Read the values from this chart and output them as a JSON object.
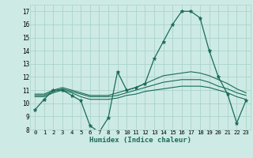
{
  "xlabel": "Humidex (Indice chaleur)",
  "xlim": [
    -0.5,
    23.5
  ],
  "ylim": [
    8,
    17.5
  ],
  "yticks": [
    8,
    9,
    10,
    11,
    12,
    13,
    14,
    15,
    16,
    17
  ],
  "xticks": [
    0,
    1,
    2,
    3,
    4,
    5,
    6,
    7,
    8,
    9,
    10,
    11,
    12,
    13,
    14,
    15,
    16,
    17,
    18,
    19,
    20,
    21,
    22,
    23
  ],
  "bg_color": "#ceeae4",
  "grid_color": "#a8d4cc",
  "line_color": "#1a6b5a",
  "lines": [
    {
      "x": [
        0,
        1,
        2,
        3,
        4,
        5,
        6,
        7,
        8,
        9,
        10,
        11,
        12,
        13,
        14,
        15,
        16,
        17,
        18,
        19,
        20,
        21,
        22,
        23
      ],
      "y": [
        9.5,
        10.3,
        11.0,
        11.0,
        10.6,
        10.2,
        8.3,
        7.8,
        8.9,
        12.4,
        11.0,
        11.2,
        11.5,
        13.4,
        14.7,
        16.0,
        17.0,
        17.0,
        16.5,
        14.0,
        12.0,
        10.7,
        8.5,
        10.2
      ],
      "marker": "*",
      "markersize": 3.5,
      "lw": 0.9
    },
    {
      "x": [
        0,
        1,
        2,
        3,
        4,
        5,
        6,
        7,
        8,
        9,
        10,
        11,
        12,
        13,
        14,
        15,
        16,
        17,
        18,
        19,
        20,
        21,
        22,
        23
      ],
      "y": [
        10.5,
        10.5,
        10.8,
        11.0,
        10.8,
        10.5,
        10.3,
        10.3,
        10.3,
        10.4,
        10.6,
        10.7,
        10.9,
        11.0,
        11.1,
        11.2,
        11.3,
        11.3,
        11.3,
        11.2,
        11.0,
        10.8,
        10.5,
        10.3
      ],
      "marker": null,
      "markersize": 0,
      "lw": 0.8
    },
    {
      "x": [
        0,
        1,
        2,
        3,
        4,
        5,
        6,
        7,
        8,
        9,
        10,
        11,
        12,
        13,
        14,
        15,
        16,
        17,
        18,
        19,
        20,
        21,
        22,
        23
      ],
      "y": [
        10.6,
        10.6,
        10.9,
        11.1,
        10.9,
        10.7,
        10.5,
        10.5,
        10.5,
        10.6,
        10.8,
        11.0,
        11.2,
        11.4,
        11.6,
        11.7,
        11.8,
        11.8,
        11.8,
        11.6,
        11.3,
        11.1,
        10.8,
        10.6
      ],
      "marker": null,
      "markersize": 0,
      "lw": 0.8
    },
    {
      "x": [
        0,
        1,
        2,
        3,
        4,
        5,
        6,
        7,
        8,
        9,
        10,
        11,
        12,
        13,
        14,
        15,
        16,
        17,
        18,
        19,
        20,
        21,
        22,
        23
      ],
      "y": [
        10.7,
        10.7,
        11.0,
        11.2,
        11.0,
        10.8,
        10.6,
        10.6,
        10.6,
        10.8,
        11.0,
        11.2,
        11.5,
        11.8,
        12.1,
        12.2,
        12.3,
        12.4,
        12.3,
        12.1,
        11.8,
        11.5,
        11.1,
        10.8
      ],
      "marker": null,
      "markersize": 0,
      "lw": 0.8
    }
  ]
}
